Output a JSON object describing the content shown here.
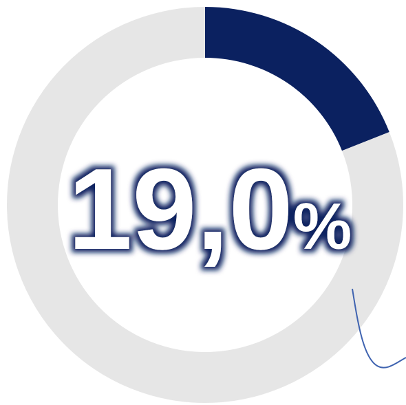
{
  "chart_data": {
    "type": "donut",
    "values": [
      19,
      81
    ],
    "value_labels": [
      "19,0%",
      null
    ],
    "colors": [
      "#0b2160",
      "#e6e6e6"
    ]
  }
}
